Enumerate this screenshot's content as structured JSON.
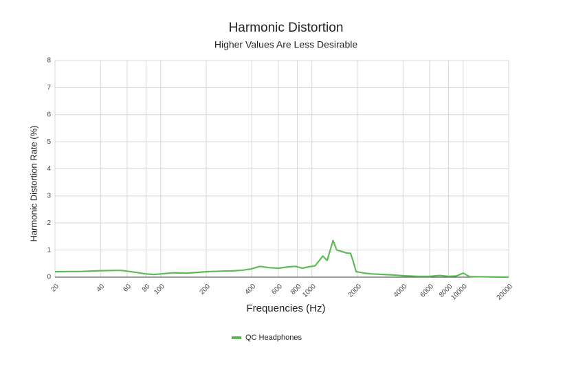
{
  "chart_data": {
    "type": "line",
    "title": "Harmonic Distortion",
    "subtitle": "Higher Values Are Less Desirable",
    "x_label": "Frequencies (Hz)",
    "y_label": "Harmonic Distortion Rate (%)",
    "x": [
      20,
      30,
      40,
      50,
      55,
      70,
      80,
      90,
      100,
      120,
      150,
      200,
      250,
      300,
      350,
      394,
      453,
      520,
      600,
      700,
      780,
      865,
      950,
      1050,
      1180,
      1260,
      1380,
      1460,
      1570,
      1670,
      1800,
      1870,
      1960,
      2220,
      2500,
      3000,
      3500,
      4000,
      5000,
      6000,
      7000,
      8000,
      9000,
      10000,
      11000,
      15000,
      20000
    ],
    "series": [
      {
        "name": "QC Headphones",
        "color": "#5dbb57",
        "values": [
          0.2,
          0.21,
          0.24,
          0.25,
          0.25,
          0.17,
          0.12,
          0.1,
          0.12,
          0.16,
          0.15,
          0.2,
          0.22,
          0.23,
          0.26,
          0.3,
          0.4,
          0.35,
          0.33,
          0.38,
          0.4,
          0.33,
          0.38,
          0.42,
          0.78,
          0.62,
          1.35,
          1.0,
          0.95,
          0.9,
          0.88,
          0.6,
          0.2,
          0.15,
          0.12,
          0.1,
          0.08,
          0.05,
          0.03,
          0.03,
          0.06,
          0.03,
          0.04,
          0.15,
          0.02,
          0.01,
          0.0
        ]
      }
    ],
    "xscale": "log",
    "xlim": [
      20,
      20000
    ],
    "xticks": [
      20,
      40,
      60,
      80,
      100,
      200,
      400,
      600,
      800,
      1000,
      2000,
      4000,
      6000,
      8000,
      10000,
      20000
    ],
    "ylim": [
      0,
      8
    ],
    "yticks": [
      0,
      1,
      2,
      3,
      4,
      5,
      6,
      7,
      8
    ],
    "grid": true,
    "legend": "bottom"
  }
}
